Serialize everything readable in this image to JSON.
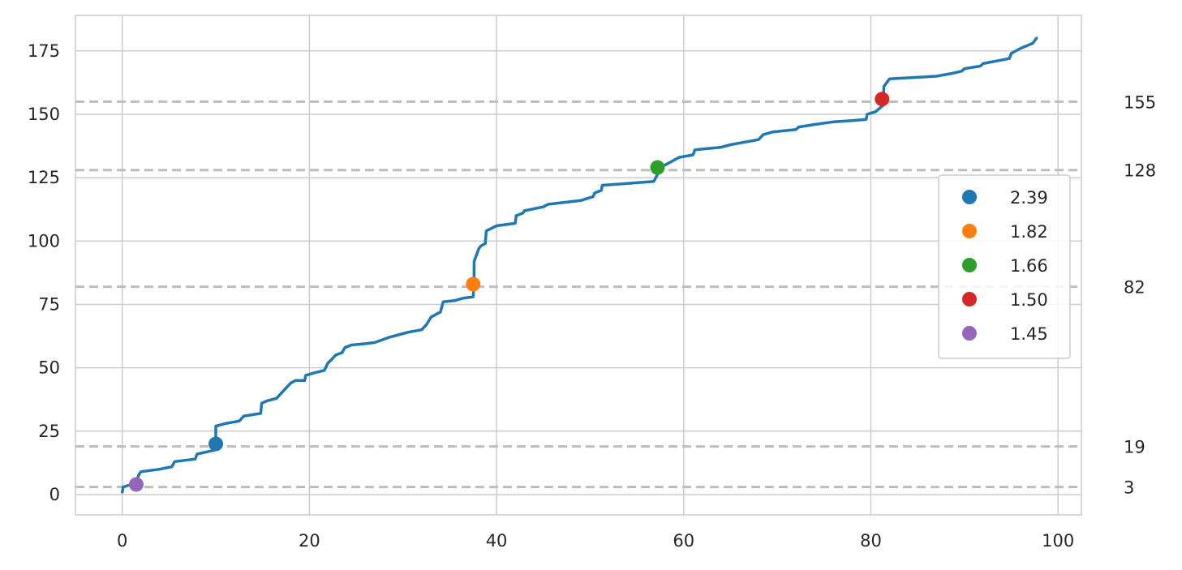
{
  "chart_data": {
    "type": "line",
    "title": "",
    "xlabel": "",
    "ylabel": "",
    "xlim": [
      -5,
      102.5
    ],
    "ylim": [
      -8,
      189
    ],
    "x_ticks": [
      0,
      20,
      40,
      60,
      80,
      100
    ],
    "y_ticks": [
      0,
      25,
      50,
      75,
      100,
      125,
      150,
      175
    ],
    "grid": true,
    "series": [
      {
        "color": "#1f77b4",
        "points": [
          [
            0,
            1
          ],
          [
            0.1,
            3
          ],
          [
            1,
            4
          ],
          [
            1.5,
            5
          ],
          [
            1.8,
            8
          ],
          [
            2,
            9
          ],
          [
            4,
            10
          ],
          [
            5.3,
            11
          ],
          [
            5.6,
            13
          ],
          [
            7.8,
            14
          ],
          [
            8,
            16
          ],
          [
            9.8,
            17.5
          ],
          [
            10,
            20
          ],
          [
            10,
            27
          ],
          [
            11,
            28
          ],
          [
            12.5,
            29
          ],
          [
            13,
            31
          ],
          [
            14.8,
            32
          ],
          [
            14.9,
            36
          ],
          [
            15.5,
            37
          ],
          [
            16.5,
            38
          ],
          [
            17.5,
            42
          ],
          [
            18,
            44
          ],
          [
            18.5,
            45
          ],
          [
            19.5,
            45
          ],
          [
            19.6,
            47
          ],
          [
            20.5,
            48
          ],
          [
            21.6,
            49
          ],
          [
            22,
            52
          ],
          [
            22.3,
            53
          ],
          [
            22.8,
            55
          ],
          [
            23.5,
            56
          ],
          [
            23.8,
            58
          ],
          [
            24.5,
            59
          ],
          [
            26,
            59.5
          ],
          [
            27,
            60
          ],
          [
            28.5,
            62
          ],
          [
            29.5,
            63
          ],
          [
            30.5,
            64
          ],
          [
            32,
            65
          ],
          [
            32.5,
            67
          ],
          [
            33,
            70
          ],
          [
            34,
            72
          ],
          [
            34.3,
            76
          ],
          [
            35.5,
            76.5
          ],
          [
            36.5,
            77.5
          ],
          [
            37.5,
            78
          ],
          [
            37.6,
            83
          ],
          [
            37.6,
            92
          ],
          [
            37.8,
            94
          ],
          [
            38.1,
            97
          ],
          [
            38.3,
            98
          ],
          [
            38.8,
            99
          ],
          [
            38.9,
            104
          ],
          [
            40,
            106
          ],
          [
            42,
            107
          ],
          [
            42.1,
            110
          ],
          [
            42.8,
            111
          ],
          [
            43,
            112
          ],
          [
            45,
            113.5
          ],
          [
            45.5,
            114.5
          ],
          [
            49,
            116
          ],
          [
            50.3,
            117.5
          ],
          [
            50.5,
            119
          ],
          [
            51.2,
            120
          ],
          [
            51.3,
            122
          ],
          [
            55,
            123
          ],
          [
            56.8,
            123.5
          ],
          [
            57.3,
            127
          ],
          [
            57.5,
            129
          ],
          [
            58.5,
            131
          ],
          [
            59.5,
            133
          ],
          [
            61,
            134
          ],
          [
            61.2,
            136
          ],
          [
            64,
            137
          ],
          [
            65,
            138
          ],
          [
            68,
            140
          ],
          [
            68.5,
            142
          ],
          [
            69.5,
            143
          ],
          [
            72,
            144
          ],
          [
            72.3,
            145
          ],
          [
            74,
            146
          ],
          [
            76,
            147
          ],
          [
            78,
            147.5
          ],
          [
            79.5,
            148
          ],
          [
            79.6,
            150
          ],
          [
            80.5,
            151
          ],
          [
            81.3,
            153.5
          ],
          [
            81.4,
            161
          ],
          [
            81.8,
            163
          ],
          [
            82,
            164
          ],
          [
            87,
            165
          ],
          [
            88.5,
            166
          ],
          [
            89.7,
            167
          ],
          [
            90,
            168
          ],
          [
            91.7,
            169
          ],
          [
            92,
            170
          ],
          [
            94.8,
            172
          ],
          [
            95,
            174
          ],
          [
            96,
            176
          ],
          [
            97.3,
            178
          ],
          [
            97.7,
            180
          ]
        ]
      }
    ],
    "markers": [
      {
        "label": "2.39",
        "x": 10,
        "y": 20,
        "color": "#1f77b4"
      },
      {
        "label": "1.82",
        "x": 37.5,
        "y": 83,
        "color": "#ff7f0e"
      },
      {
        "label": "1.66",
        "x": 57.2,
        "y": 129,
        "color": "#2ca02c"
      },
      {
        "label": "1.50",
        "x": 81.2,
        "y": 156,
        "color": "#d62728"
      },
      {
        "label": "1.45",
        "x": 1.5,
        "y": 4,
        "color": "#9467bd"
      }
    ],
    "reference_lines": [
      {
        "y": 155,
        "label": "155"
      },
      {
        "y": 128,
        "label": "128"
      },
      {
        "y": 82,
        "label": "82"
      },
      {
        "y": 19,
        "label": "19"
      },
      {
        "y": 3,
        "label": "3"
      }
    ],
    "legend_position": "right"
  }
}
